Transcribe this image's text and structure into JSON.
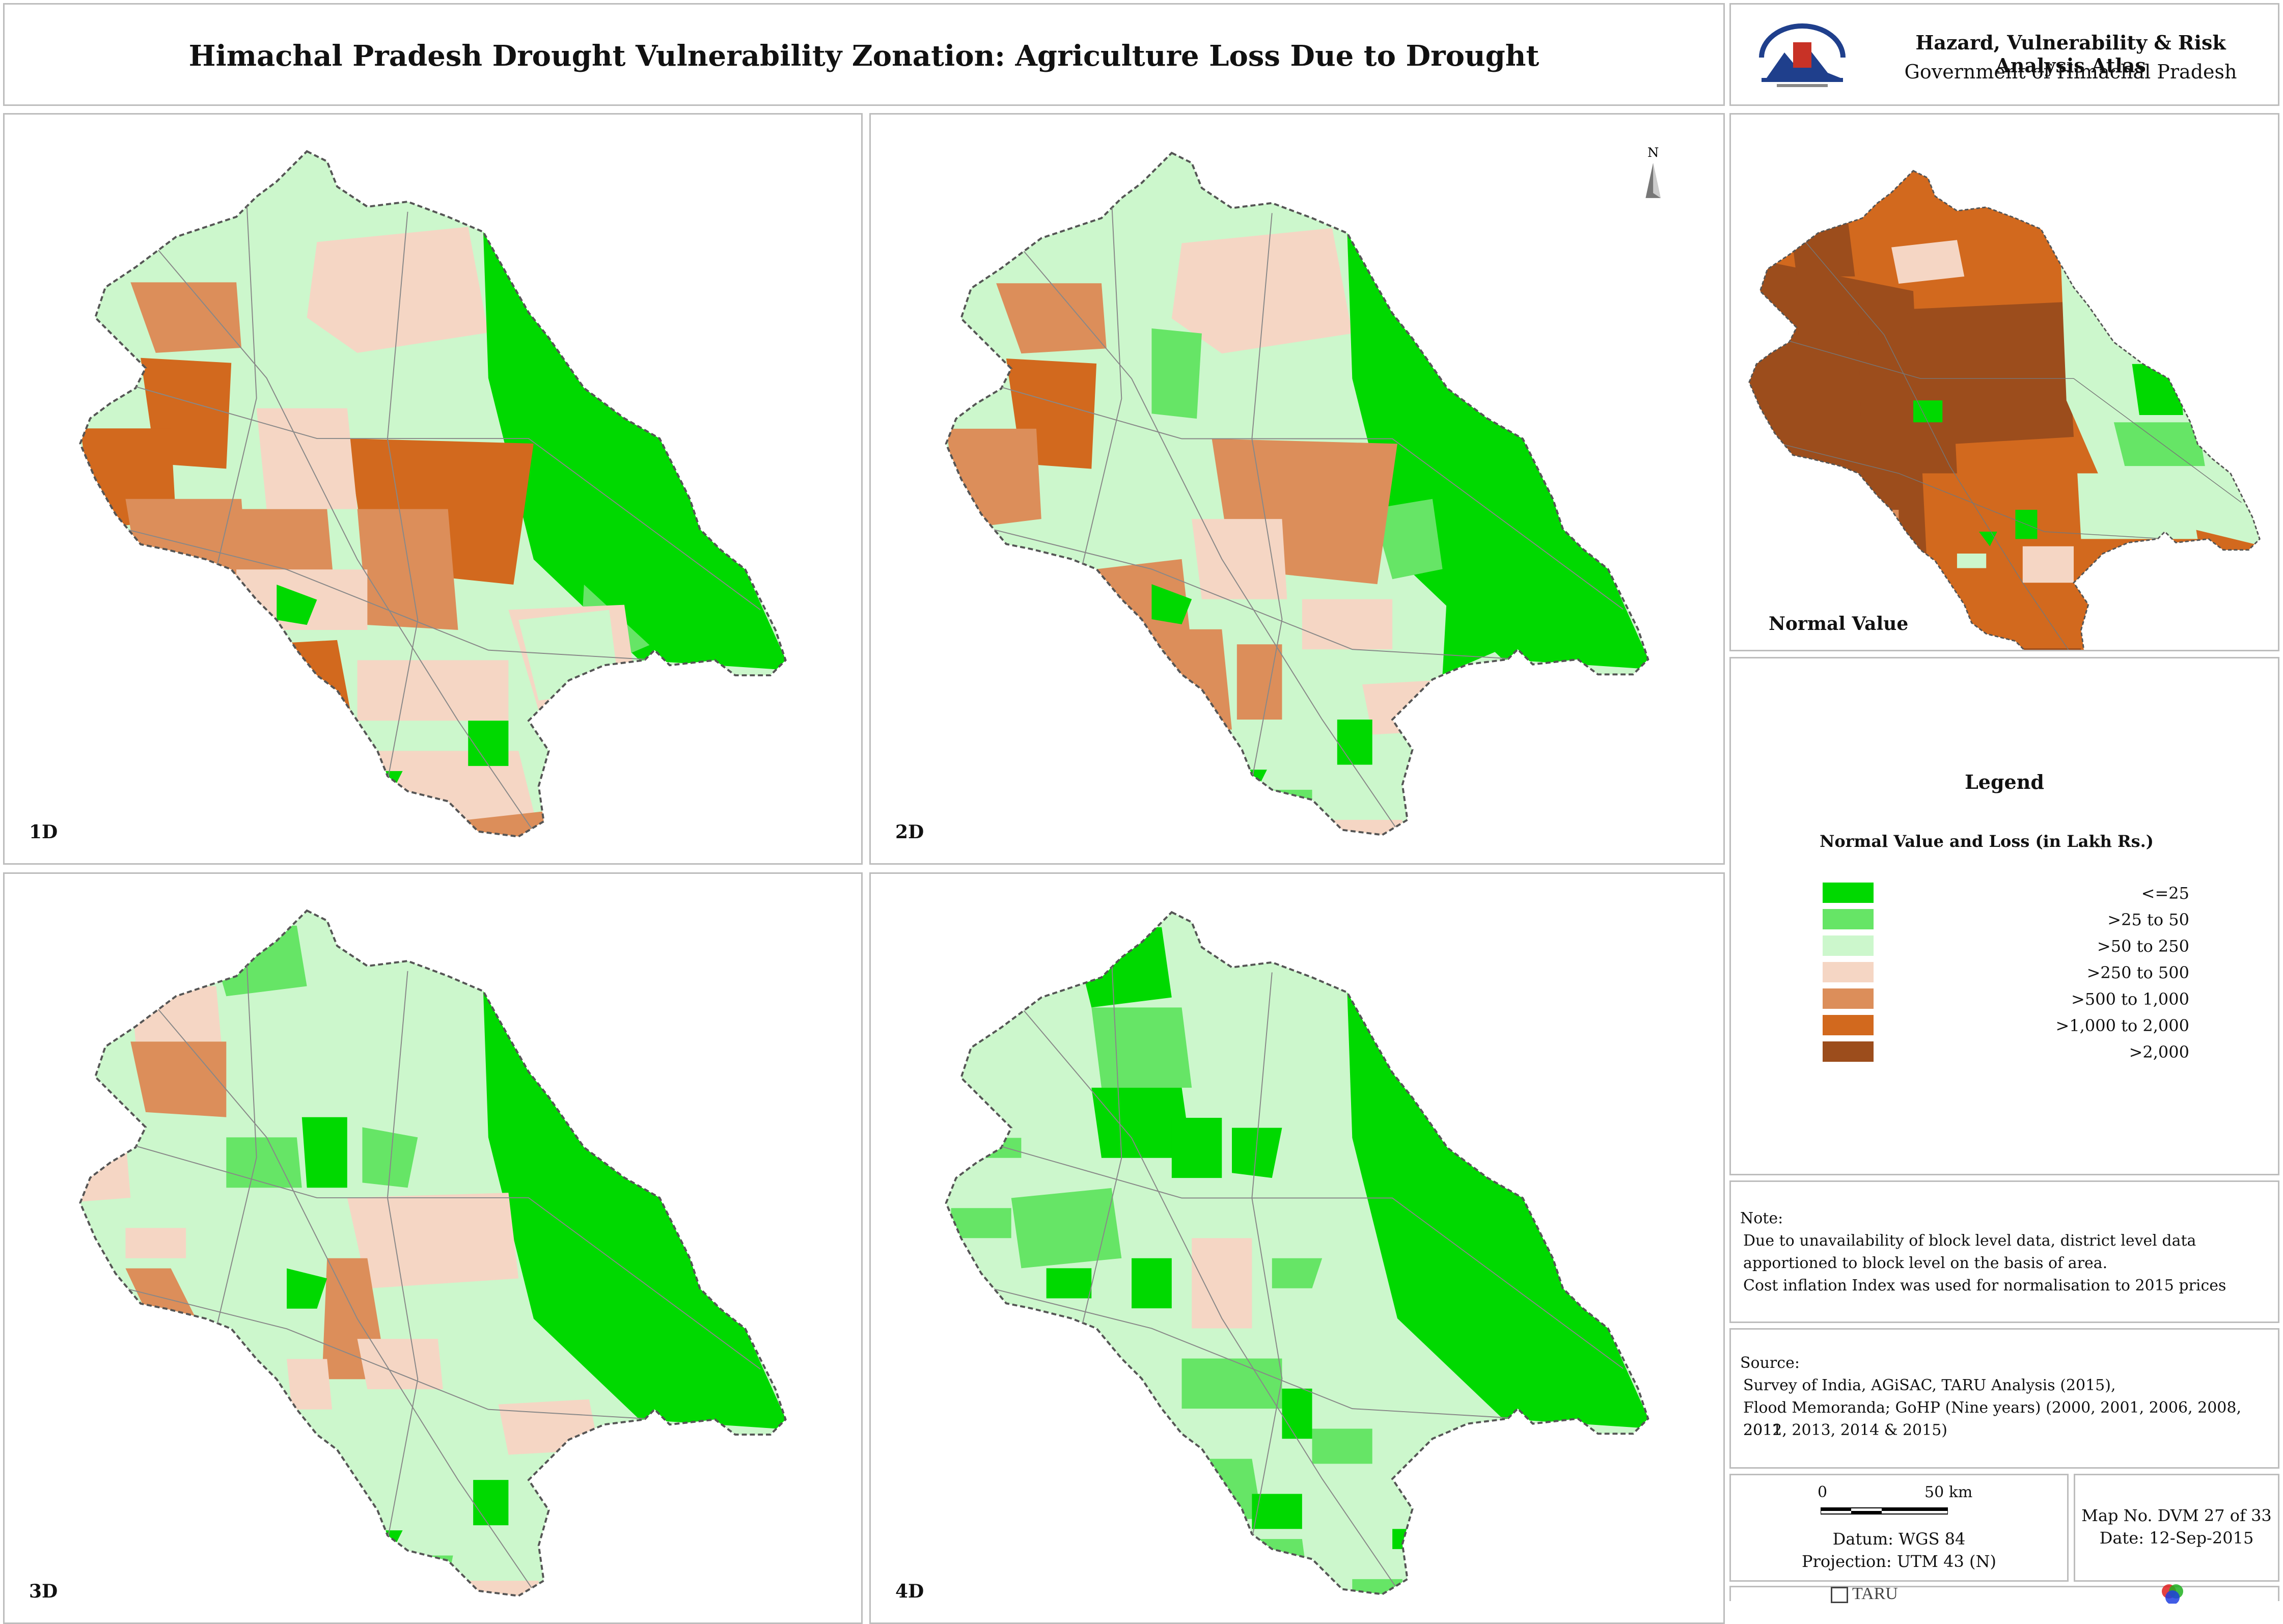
{
  "header": {
    "title": "Himachal Pradesh Drought Vulnerability Zonation: Agriculture Loss Due to Drought"
  },
  "atlas": {
    "title": "Hazard, Vulnerability & Risk Analysis Atlas",
    "subtitle": "Government of Himachal Pradesh"
  },
  "colors": {
    "c1": "#00d900",
    "c2": "#66e566",
    "c3": "#ccf7cc",
    "c4": "#f5d6c4",
    "c5": "#dc8e5a",
    "c6": "#d2691e",
    "c7": "#9c4d1c",
    "border": "#555555"
  },
  "maps": {
    "m1": {
      "label": "1D"
    },
    "m2": {
      "label": "2D",
      "north": "N"
    },
    "m3": {
      "label": "3D"
    },
    "m4": {
      "label": "4D"
    },
    "normal": {
      "label": "Normal Value"
    }
  },
  "legend": {
    "title": "Legend",
    "subtitle": "Normal Value and Loss (in Lakh Rs.)",
    "items": [
      {
        "label": "<=25",
        "color": "#00d900"
      },
      {
        "label": ">25 to 50",
        "color": "#66e566"
      },
      {
        "label": ">50 to 250",
        "color": "#ccf7cc"
      },
      {
        "label": ">250 to 500",
        "color": "#f5d6c4"
      },
      {
        "label": ">500 to 1,000",
        "color": "#dc8e5a"
      },
      {
        "label": ">1,000 to 2,000",
        "color": "#d2691e"
      },
      {
        "label": ">2,000",
        "color": "#9c4d1c"
      }
    ]
  },
  "note": {
    "heading": "Note:",
    "line1": "Due to unavailability of block level data, district level data",
    "line2": "apportioned to block level on the basis of area.",
    "line3": "Cost inflation Index was used for normalisation to 2015 prices"
  },
  "source": {
    "heading": "Source:",
    "line1": "Survey of India, AGiSAC, TARU Analysis (2015),",
    "line2": "Flood Memoranda; GoHP (Nine years) (2000, 2001, 2006, 2008, 2011,",
    "line3": "2012, 2013, 2014 & 2015)"
  },
  "scale": {
    "zero": "0",
    "distance": "50 km",
    "datum": "Datum: WGS 84",
    "projection": "Projection: UTM 43 (N)"
  },
  "mapinfo": {
    "number": "Map No. DVM 27 of 33",
    "date": "Date: 12-Sep-2015"
  },
  "footer": {
    "logo_text": "TARU"
  }
}
